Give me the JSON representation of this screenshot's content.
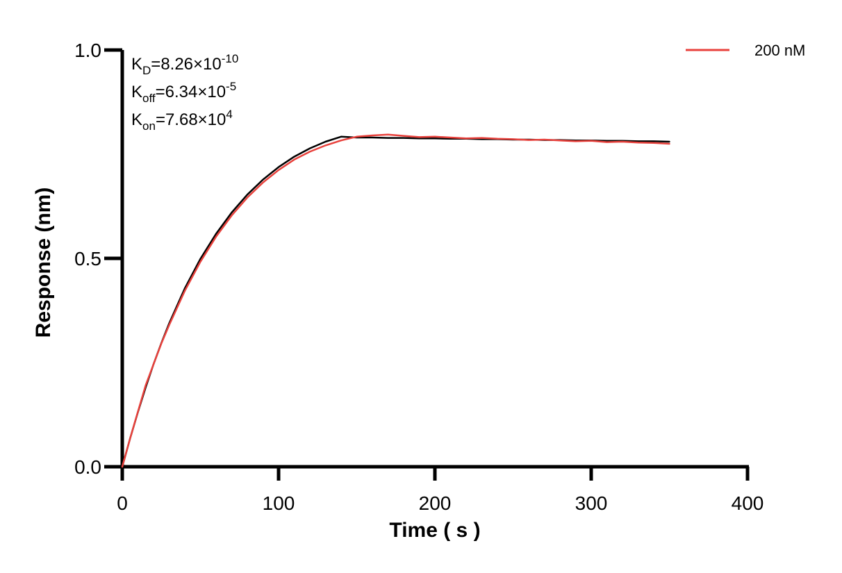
{
  "chart_data": {
    "type": "line",
    "title": "",
    "xlabel": "Time ( s )",
    "ylabel": "Response (nm)",
    "xlim": [
      0,
      400
    ],
    "ylim": [
      0,
      1.0
    ],
    "x_ticks": [
      "0",
      "100",
      "200",
      "300",
      "400"
    ],
    "y_ticks": [
      "0.0",
      "0.5",
      "1.0"
    ],
    "grid": false,
    "legend_position": "top-right",
    "annotations": [
      {
        "base": "K",
        "sub": "D",
        "value": "=8.26×10",
        "sup": "-10"
      },
      {
        "base": "K",
        "sub": "off",
        "value": "=6.34×10",
        "sup": "-5"
      },
      {
        "base": "K",
        "sub": "on",
        "value": "=7.68×10",
        "sup": "4"
      }
    ],
    "association_end_s": 150,
    "series": [
      {
        "name": "200 nM",
        "color": "#e8413c",
        "x": [
          0,
          5,
          10,
          15,
          20,
          25,
          30,
          40,
          50,
          60,
          70,
          80,
          90,
          100,
          110,
          120,
          130,
          140,
          150,
          160,
          170,
          180,
          190,
          200,
          210,
          220,
          230,
          240,
          250,
          260,
          270,
          280,
          290,
          300,
          310,
          320,
          330,
          340,
          350
        ],
        "y": [
          0.0,
          0.068,
          0.132,
          0.196,
          0.246,
          0.296,
          0.34,
          0.422,
          0.492,
          0.552,
          0.603,
          0.646,
          0.682,
          0.712,
          0.737,
          0.756,
          0.771,
          0.783,
          0.792,
          0.795,
          0.797,
          0.794,
          0.791,
          0.792,
          0.79,
          0.788,
          0.789,
          0.787,
          0.786,
          0.784,
          0.785,
          0.783,
          0.781,
          0.782,
          0.779,
          0.78,
          0.778,
          0.777,
          0.775
        ]
      },
      {
        "name": "",
        "color": "#000000",
        "x": [
          0,
          5,
          10,
          15,
          20,
          25,
          30,
          40,
          50,
          60,
          70,
          80,
          90,
          100,
          110,
          120,
          130,
          140,
          150,
          160,
          170,
          180,
          190,
          200,
          210,
          220,
          230,
          240,
          250,
          260,
          270,
          280,
          290,
          300,
          310,
          320,
          330,
          340,
          350
        ],
        "y": [
          0.0,
          0.068,
          0.131,
          0.191,
          0.246,
          0.297,
          0.344,
          0.428,
          0.499,
          0.559,
          0.61,
          0.653,
          0.689,
          0.719,
          0.744,
          0.764,
          0.78,
          0.792,
          0.79,
          0.79,
          0.789,
          0.789,
          0.788,
          0.788,
          0.787,
          0.787,
          0.786,
          0.786,
          0.785,
          0.785,
          0.784,
          0.784,
          0.783,
          0.783,
          0.782,
          0.782,
          0.781,
          0.781,
          0.78
        ]
      }
    ]
  }
}
